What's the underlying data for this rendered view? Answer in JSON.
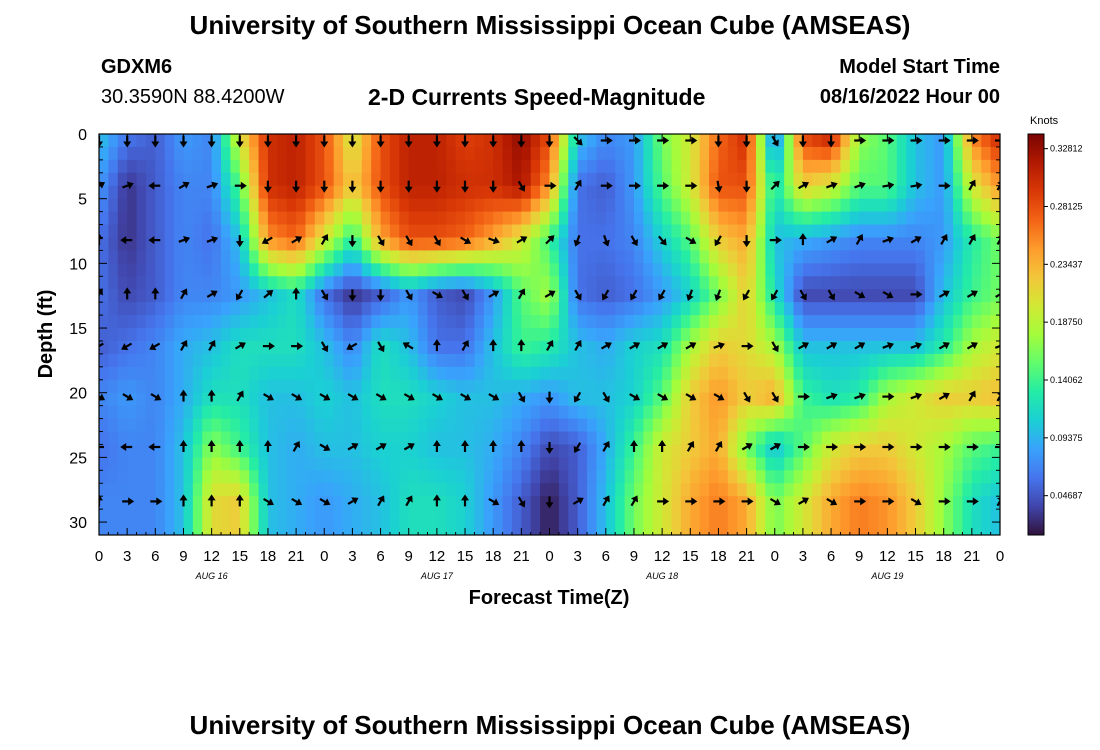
{
  "header": {
    "title": "University of Southern Mississippi Ocean Cube (AMSEAS)",
    "station": "GDXM6",
    "coords": "30.3590N  88.4200W",
    "subtitle": "2-D Currents Speed-Magnitude",
    "start_label": "Model Start Time",
    "start_value": "08/16/2022 Hour 00"
  },
  "footer": {
    "title": "University of Southern Mississippi Ocean Cube (AMSEAS)"
  },
  "colors": {
    "colormap": [
      "#30123b",
      "#4145ab",
      "#4675ed",
      "#39a2fc",
      "#1bcfd4",
      "#24eca6",
      "#61fc6c",
      "#a4fc3b",
      "#d1e834",
      "#f3c63a",
      "#fe9b2d",
      "#f36315",
      "#d93806",
      "#b11901",
      "#7a0402"
    ],
    "arrow": "#000000"
  },
  "chart_data": {
    "type": "heatmap",
    "title": "2-D Currents Speed-Magnitude",
    "xlabel": "Forecast Time(Z)",
    "ylabel": "Depth (ft)",
    "x_tick_labels": [
      "0",
      "3",
      "6",
      "9",
      "12",
      "15",
      "18",
      "21",
      "0",
      "3",
      "6",
      "9",
      "12",
      "15",
      "18",
      "21",
      "0",
      "3",
      "6",
      "9",
      "12",
      "15",
      "18",
      "21",
      "0",
      "3",
      "6",
      "9",
      "12",
      "15",
      "18",
      "21",
      "0"
    ],
    "date_labels": [
      {
        "label": "AUG 16",
        "hour": 12
      },
      {
        "label": "AUG 17",
        "hour": 36
      },
      {
        "label": "AUG 18",
        "hour": 60
      },
      {
        "label": "AUG 19",
        "hour": 84
      }
    ],
    "xlim_hours": [
      0,
      96
    ],
    "ylim_depth": [
      0,
      31
    ],
    "y_ticks": [
      0,
      5,
      10,
      15,
      20,
      25,
      30
    ],
    "colorbar": {
      "unit": "Knots",
      "range": [
        0.015,
        0.34
      ],
      "ticks": [
        "0.32812",
        "0.28125",
        "0.23437",
        "0.18750",
        "0.14062",
        "0.09375",
        "0.04687"
      ],
      "tick_values": [
        0.32812,
        0.28125,
        0.23437,
        0.1875,
        0.14062,
        0.09375,
        0.04687
      ]
    },
    "vector_depths": [
      0.5,
      4.0,
      8.2,
      12.4,
      16.4,
      20.3,
      24.2,
      28.4
    ],
    "vector_hours_step": 3,
    "speed_field": [
      {
        "depth": 0.5,
        "values": [
          0.1,
          0.06,
          0.05,
          0.08,
          0.07,
          0.2,
          0.3,
          0.31,
          0.28,
          0.2,
          0.28,
          0.31,
          0.31,
          0.29,
          0.3,
          0.33,
          0.28,
          0.1,
          0.07,
          0.08,
          0.16,
          0.2,
          0.27,
          0.3,
          0.06,
          0.28,
          0.3,
          0.17,
          0.15,
          0.1,
          0.08,
          0.25,
          0.3
        ]
      },
      {
        "depth": 4.0,
        "values": [
          0.08,
          0.03,
          0.05,
          0.07,
          0.07,
          0.15,
          0.3,
          0.31,
          0.28,
          0.22,
          0.28,
          0.31,
          0.31,
          0.3,
          0.3,
          0.32,
          0.25,
          0.06,
          0.05,
          0.08,
          0.15,
          0.2,
          0.28,
          0.28,
          0.12,
          0.22,
          0.2,
          0.15,
          0.15,
          0.1,
          0.08,
          0.2,
          0.25
        ]
      },
      {
        "depth": 8.2,
        "values": [
          0.06,
          0.03,
          0.05,
          0.07,
          0.06,
          0.1,
          0.25,
          0.27,
          0.2,
          0.13,
          0.24,
          0.28,
          0.28,
          0.27,
          0.24,
          0.2,
          0.14,
          0.06,
          0.06,
          0.07,
          0.11,
          0.15,
          0.22,
          0.24,
          0.1,
          0.09,
          0.08,
          0.07,
          0.07,
          0.07,
          0.08,
          0.13,
          0.16
        ]
      },
      {
        "depth": 12.4,
        "values": [
          0.06,
          0.04,
          0.05,
          0.07,
          0.07,
          0.08,
          0.1,
          0.12,
          0.06,
          0.03,
          0.05,
          0.08,
          0.05,
          0.04,
          0.08,
          0.15,
          0.18,
          0.06,
          0.05,
          0.06,
          0.08,
          0.11,
          0.16,
          0.22,
          0.12,
          0.04,
          0.04,
          0.04,
          0.04,
          0.04,
          0.1,
          0.14,
          0.16
        ]
      },
      {
        "depth": 16.4,
        "values": [
          0.05,
          0.06,
          0.07,
          0.09,
          0.1,
          0.12,
          0.12,
          0.12,
          0.1,
          0.07,
          0.12,
          0.1,
          0.06,
          0.06,
          0.1,
          0.14,
          0.13,
          0.1,
          0.09,
          0.11,
          0.12,
          0.18,
          0.22,
          0.21,
          0.18,
          0.1,
          0.1,
          0.1,
          0.1,
          0.1,
          0.13,
          0.18,
          0.2
        ]
      },
      {
        "depth": 20.3,
        "values": [
          0.07,
          0.08,
          0.07,
          0.09,
          0.12,
          0.12,
          0.1,
          0.1,
          0.11,
          0.1,
          0.12,
          0.12,
          0.11,
          0.1,
          0.1,
          0.09,
          0.08,
          0.1,
          0.1,
          0.11,
          0.15,
          0.22,
          0.25,
          0.22,
          0.24,
          0.14,
          0.12,
          0.13,
          0.18,
          0.2,
          0.22,
          0.22,
          0.23
        ]
      },
      {
        "depth": 24.2,
        "values": [
          0.06,
          0.07,
          0.07,
          0.1,
          0.17,
          0.14,
          0.1,
          0.09,
          0.1,
          0.1,
          0.11,
          0.11,
          0.1,
          0.1,
          0.09,
          0.07,
          0.04,
          0.05,
          0.09,
          0.14,
          0.2,
          0.22,
          0.24,
          0.16,
          0.1,
          0.15,
          0.2,
          0.22,
          0.22,
          0.2,
          0.18,
          0.15,
          0.14
        ]
      },
      {
        "depth": 28.4,
        "values": [
          0.07,
          0.07,
          0.07,
          0.1,
          0.21,
          0.22,
          0.1,
          0.09,
          0.08,
          0.09,
          0.1,
          0.12,
          0.12,
          0.11,
          0.08,
          0.05,
          0.02,
          0.05,
          0.1,
          0.16,
          0.2,
          0.24,
          0.26,
          0.24,
          0.16,
          0.2,
          0.24,
          0.26,
          0.25,
          0.22,
          0.17,
          0.12,
          0.1
        ]
      }
    ],
    "vector_angles_deg": [
      {
        "depth": 0.5,
        "angles": [
          270,
          270,
          270,
          270,
          270,
          270,
          270,
          270,
          270,
          270,
          270,
          270,
          270,
          270,
          270,
          270,
          270,
          315,
          0,
          0,
          0,
          0,
          270,
          270,
          300,
          270,
          270,
          0,
          0,
          0,
          0,
          0,
          0
        ]
      },
      {
        "depth": 4.0,
        "angles": [
          30,
          20,
          180,
          30,
          20,
          0,
          270,
          270,
          270,
          270,
          270,
          270,
          270,
          270,
          270,
          300,
          0,
          60,
          0,
          0,
          0,
          0,
          280,
          270,
          45,
          30,
          20,
          20,
          10,
          10,
          0,
          60,
          60
        ]
      },
      {
        "depth": 8.2,
        "angles": [
          90,
          180,
          180,
          20,
          20,
          270,
          210,
          30,
          60,
          270,
          300,
          300,
          300,
          330,
          340,
          30,
          45,
          250,
          290,
          300,
          310,
          330,
          240,
          270,
          0,
          90,
          30,
          60,
          20,
          30,
          60,
          60,
          60
        ]
      },
      {
        "depth": 12.4,
        "angles": [
          60,
          90,
          90,
          60,
          30,
          240,
          40,
          90,
          300,
          270,
          270,
          300,
          330,
          300,
          30,
          60,
          30,
          300,
          240,
          240,
          240,
          250,
          250,
          240,
          240,
          300,
          300,
          330,
          330,
          0,
          30,
          30,
          30
        ]
      },
      {
        "depth": 16.4,
        "angles": [
          210,
          210,
          210,
          60,
          60,
          30,
          0,
          0,
          300,
          210,
          300,
          150,
          90,
          60,
          90,
          90,
          60,
          60,
          30,
          30,
          30,
          30,
          20,
          0,
          300,
          30,
          30,
          30,
          20,
          20,
          30,
          30,
          20
        ]
      },
      {
        "depth": 20.3,
        "angles": [
          330,
          330,
          330,
          90,
          90,
          60,
          330,
          330,
          330,
          330,
          330,
          330,
          330,
          330,
          330,
          300,
          270,
          240,
          300,
          330,
          330,
          330,
          330,
          300,
          300,
          0,
          20,
          20,
          0,
          20,
          30,
          60,
          60
        ]
      },
      {
        "depth": 24.2,
        "angles": [
          180,
          180,
          180,
          90,
          90,
          90,
          90,
          60,
          330,
          30,
          30,
          30,
          90,
          90,
          90,
          90,
          270,
          240,
          60,
          90,
          90,
          60,
          60,
          30,
          30,
          0,
          0,
          0,
          0,
          0,
          0,
          0,
          0
        ]
      },
      {
        "depth": 28.4,
        "angles": [
          90,
          0,
          0,
          90,
          90,
          90,
          330,
          330,
          330,
          30,
          60,
          60,
          90,
          90,
          330,
          300,
          270,
          30,
          60,
          60,
          0,
          0,
          0,
          0,
          330,
          30,
          330,
          0,
          0,
          330,
          0,
          0,
          60
        ]
      }
    ]
  }
}
